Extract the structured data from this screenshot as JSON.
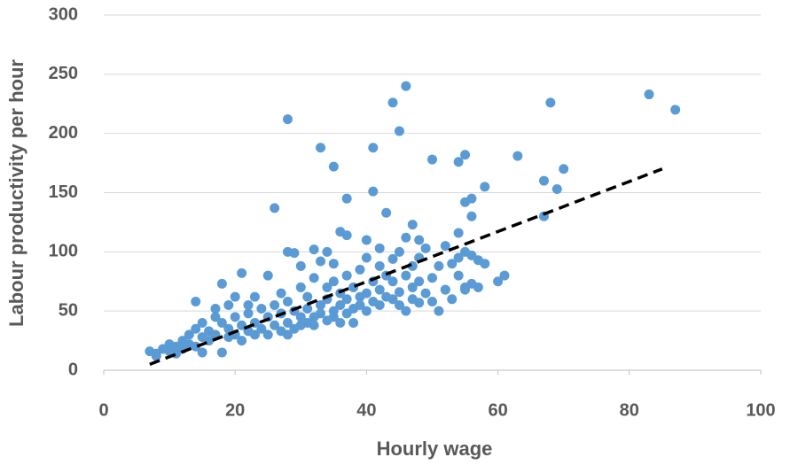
{
  "chart_data": {
    "type": "scatter",
    "x_label": "Hourly wage",
    "y_label": "Labour productivity per hour",
    "xlim": [
      0,
      100
    ],
    "xticks": [
      0,
      20,
      40,
      60,
      80,
      100
    ],
    "ylim": [
      0,
      300
    ],
    "yticks": [
      0,
      50,
      100,
      150,
      200,
      250,
      300
    ],
    "grid": true,
    "series": [
      {
        "color": "#5b9bd5",
        "x": [
          7,
          8,
          8,
          9,
          10,
          10,
          11,
          11,
          12,
          12,
          13,
          13,
          14,
          14,
          14,
          15,
          15,
          15,
          16,
          16,
          17,
          17,
          17,
          18,
          18,
          18,
          19,
          19,
          19,
          20,
          20,
          20,
          21,
          21,
          21,
          22,
          22,
          22,
          23,
          23,
          23,
          24,
          24,
          25,
          25,
          25,
          26,
          26,
          27,
          27,
          27,
          28,
          28,
          28,
          28,
          29,
          29,
          29,
          30,
          30,
          30,
          30,
          31,
          31,
          31,
          32,
          32,
          32,
          32,
          33,
          33,
          33,
          34,
          34,
          34,
          34,
          35,
          35,
          35,
          35,
          36,
          36,
          36,
          36,
          37,
          37,
          37,
          37,
          38,
          38,
          38,
          39,
          39,
          39,
          40,
          40,
          40,
          40,
          41,
          41,
          42,
          42,
          42,
          42,
          43,
          43,
          44,
          44,
          44,
          45,
          45,
          45,
          46,
          46,
          47,
          47,
          47,
          48,
          48,
          48,
          49,
          49,
          50,
          50,
          51,
          51,
          52,
          52,
          53,
          53,
          54,
          54,
          55,
          55,
          56,
          57,
          58,
          60,
          61,
          28,
          33,
          35,
          41,
          44,
          45,
          46,
          50,
          54,
          55,
          63,
          67,
          68,
          69,
          70,
          83,
          87,
          67,
          26,
          41,
          37,
          43,
          47,
          55,
          56,
          58,
          56,
          54,
          48,
          46,
          56,
          57,
          55,
          52
        ],
        "values": [
          16,
          12,
          14,
          18,
          22,
          16,
          14,
          20,
          25,
          18,
          30,
          22,
          20,
          35,
          58,
          15,
          28,
          40,
          25,
          33,
          30,
          45,
          52,
          15,
          40,
          73,
          28,
          35,
          55,
          30,
          45,
          62,
          25,
          38,
          82,
          33,
          48,
          55,
          30,
          40,
          62,
          35,
          52,
          30,
          45,
          80,
          38,
          55,
          33,
          48,
          65,
          30,
          40,
          100,
          58,
          35,
          50,
          99,
          38,
          45,
          70,
          88,
          40,
          52,
          62,
          45,
          38,
          102,
          78,
          48,
          55,
          92,
          42,
          60,
          100,
          70,
          50,
          45,
          75,
          90,
          55,
          40,
          117,
          65,
          60,
          48,
          114,
          80,
          52,
          70,
          40,
          55,
          62,
          85,
          50,
          65,
          110,
          95,
          58,
          75,
          55,
          68,
          88,
          103,
          62,
          80,
          60,
          75,
          94,
          55,
          66,
          100,
          50,
          80,
          70,
          60,
          88,
          57,
          75,
          95,
          65,
          103,
          58,
          78,
          50,
          88,
          68,
          105,
          60,
          90,
          80,
          95,
          70,
          100,
          73,
          93,
          90,
          75,
          80,
          212,
          188,
          172,
          188,
          226,
          202,
          240,
          178,
          176,
          182,
          181,
          160,
          226,
          153,
          170,
          233,
          220,
          130,
          137,
          151,
          145,
          133,
          123,
          142,
          145,
          155,
          130,
          116,
          110,
          112,
          97,
          70,
          68,
          68
        ]
      }
    ],
    "trendline": {
      "x": [
        7,
        85
      ],
      "values": [
        5,
        170
      ],
      "color": "#000000"
    }
  }
}
